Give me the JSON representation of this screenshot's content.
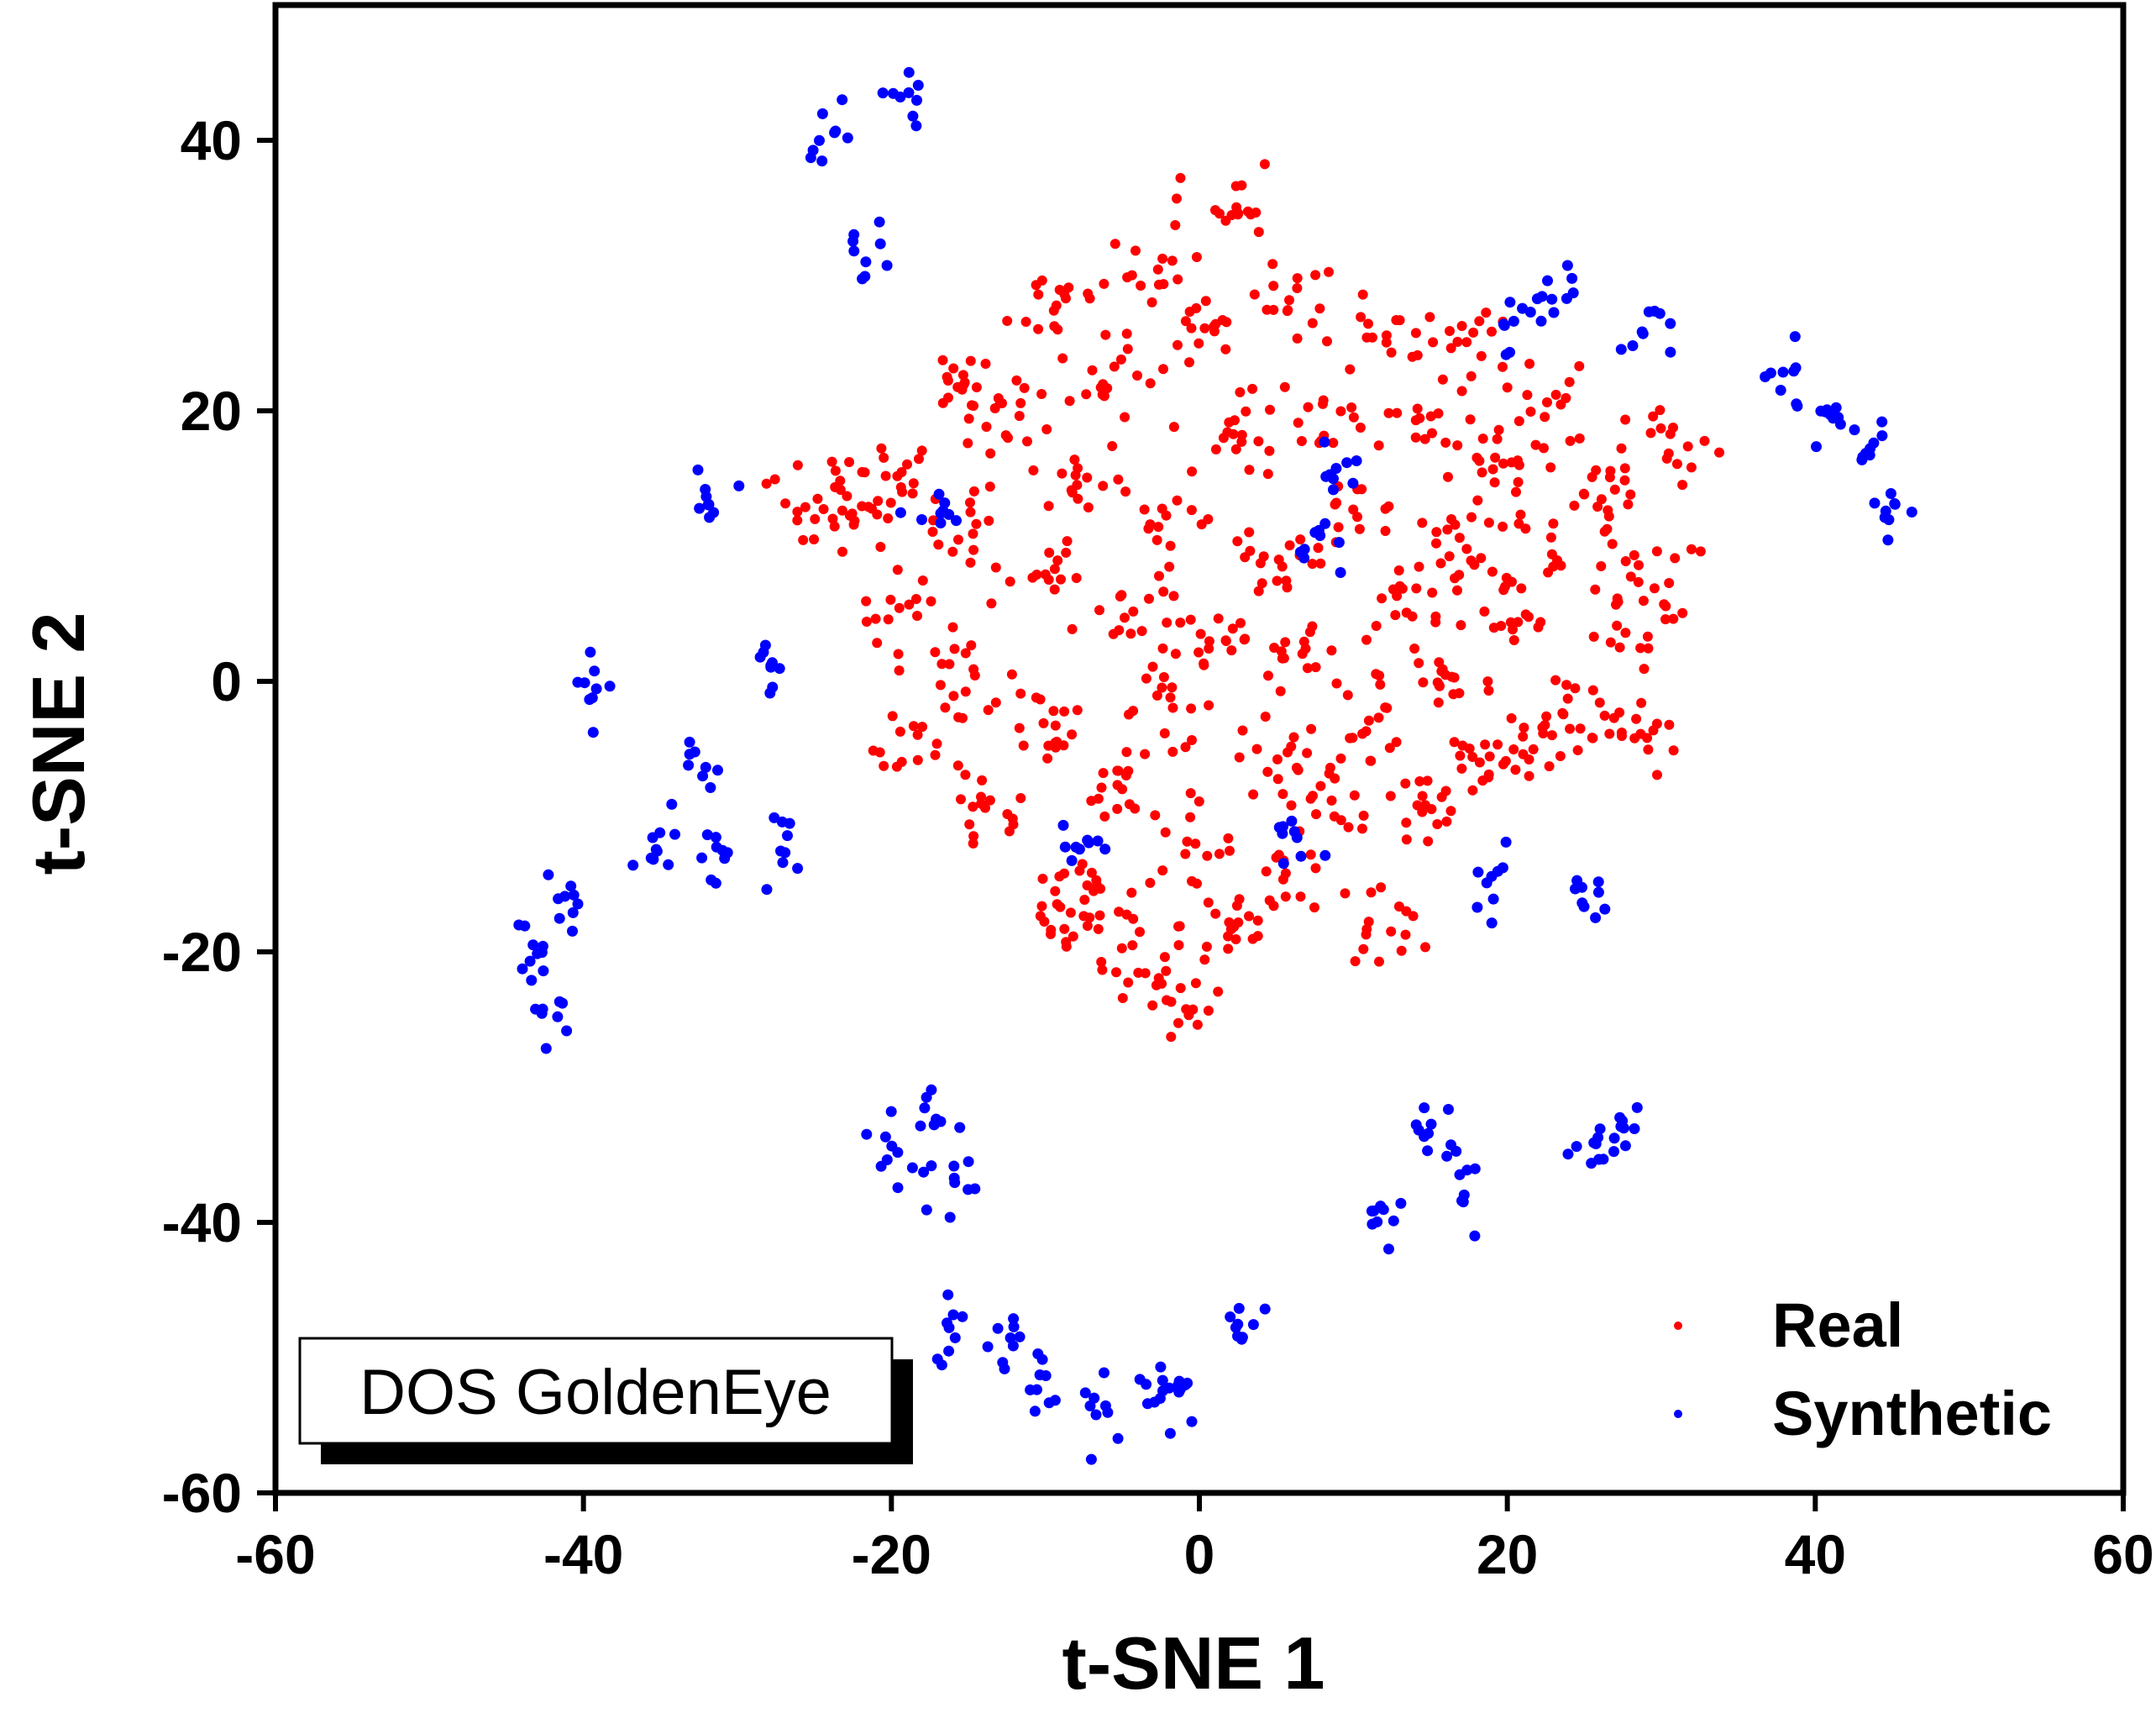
{
  "chart_data": {
    "type": "scatter",
    "title": "",
    "xlabel": "t-SNE 1",
    "ylabel": "t-SNE 2",
    "xlim": [
      -60,
      60
    ],
    "ylim": [
      -60,
      50
    ],
    "xticks": [
      -60,
      -40,
      -20,
      0,
      20,
      40,
      60
    ],
    "yticks": [
      -60,
      -40,
      -20,
      0,
      20,
      40
    ],
    "grid": false,
    "legend_position": "bottom-right",
    "annotation": "DOS GoldenEye",
    "series": [
      {
        "name": "Real",
        "color": "#ff0000",
        "centers": [
          [
            -20,
            15
          ],
          [
            -19,
            5
          ],
          [
            -18,
            -5
          ],
          [
            -16,
            12
          ],
          [
            -15,
            0
          ],
          [
            -14,
            -10
          ],
          [
            -12,
            20
          ],
          [
            -11,
            8
          ],
          [
            -10,
            -3
          ],
          [
            -9,
            28
          ],
          [
            -8,
            15
          ],
          [
            -8,
            -15
          ],
          [
            -6,
            22
          ],
          [
            -5,
            5
          ],
          [
            -5,
            -8
          ],
          [
            -4,
            -20
          ],
          [
            -3,
            30
          ],
          [
            -2,
            12
          ],
          [
            -2,
            -2
          ],
          [
            -1,
            -12
          ],
          [
            0,
            25
          ],
          [
            1,
            3
          ],
          [
            2,
            -18
          ],
          [
            3,
            18
          ],
          [
            4,
            8
          ],
          [
            5,
            -6
          ],
          [
            6,
            28
          ],
          [
            6,
            -15
          ],
          [
            7,
            2
          ],
          [
            8,
            20
          ],
          [
            9,
            -8
          ],
          [
            10,
            12
          ],
          [
            11,
            -2
          ],
          [
            12,
            25
          ],
          [
            12,
            -18
          ],
          [
            13,
            6
          ],
          [
            14,
            -10
          ],
          [
            15,
            18
          ],
          [
            16,
            0
          ],
          [
            17,
            10
          ],
          [
            18,
            -6
          ],
          [
            20,
            16
          ],
          [
            20,
            4
          ],
          [
            21,
            -4
          ],
          [
            23,
            10
          ],
          [
            24,
            -2
          ],
          [
            26,
            14
          ],
          [
            27,
            4
          ],
          [
            28,
            -4
          ],
          [
            29,
            8
          ],
          [
            -23,
            12
          ],
          [
            -25,
            14
          ],
          [
            2,
            35
          ],
          [
            -1,
            -24
          ],
          [
            31,
            17
          ],
          [
            -8,
            -18
          ],
          [
            -15,
            22
          ],
          [
            22,
            20
          ],
          [
            18,
            25
          ]
        ],
        "spread": [
          1.6,
          1.6
        ],
        "points_per_center": 16
      },
      {
        "name": "Synthetic",
        "color": "#0000ff",
        "centers": [
          [
            -24,
            41
          ],
          [
            -19,
            43
          ],
          [
            -22,
            32
          ],
          [
            -32,
            13
          ],
          [
            -17,
            12
          ],
          [
            -28,
            2
          ],
          [
            -39,
            0
          ],
          [
            -41,
            -17
          ],
          [
            -44,
            -20
          ],
          [
            -42,
            -24
          ],
          [
            -35,
            -13
          ],
          [
            -31,
            -13
          ],
          [
            -27,
            -12
          ],
          [
            -32,
            -7
          ],
          [
            -17,
            -32
          ],
          [
            -20,
            -35
          ],
          [
            -16,
            -37
          ],
          [
            -16,
            -48
          ],
          [
            -13,
            -49
          ],
          [
            -10,
            -52
          ],
          [
            -6,
            -54
          ],
          [
            -3,
            -52
          ],
          [
            -1,
            -53
          ],
          [
            3,
            -48
          ],
          [
            20,
            27
          ],
          [
            23,
            29
          ],
          [
            29,
            26
          ],
          [
            9,
            15
          ],
          [
            8,
            10
          ],
          [
            6,
            -12
          ],
          [
            -8,
            -12
          ],
          [
            19,
            -15
          ],
          [
            25,
            -16
          ],
          [
            12,
            -39
          ],
          [
            15,
            -33
          ],
          [
            17,
            -38
          ],
          [
            28,
            -33
          ],
          [
            26,
            -35
          ],
          [
            38,
            22
          ],
          [
            41,
            19
          ],
          [
            43,
            17
          ],
          [
            45,
            13
          ]
        ],
        "spread": [
          0.8,
          1.2
        ],
        "points_per_center": 9
      }
    ]
  }
}
